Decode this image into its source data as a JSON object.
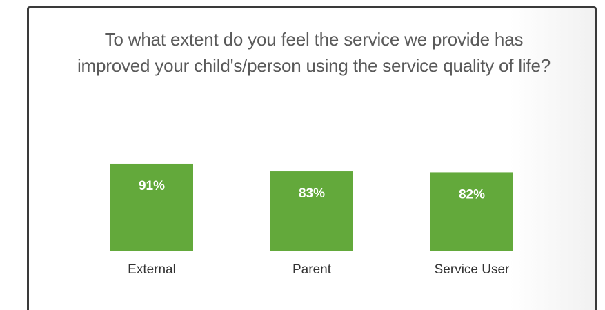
{
  "chart_data": {
    "type": "bar",
    "title": "To what extent do you feel the service we provide has improved your child's/person using the service quality of life?",
    "categories": [
      "External",
      "Parent",
      "Service User"
    ],
    "values": [
      91,
      83,
      82
    ],
    "value_labels": [
      "91%",
      "83%",
      "82%"
    ],
    "color": "#63a93b"
  }
}
